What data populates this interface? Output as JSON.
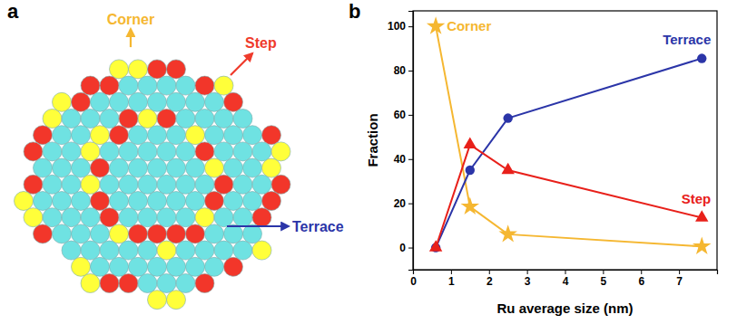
{
  "diagram": {
    "panel_label": "a",
    "labels": [
      {
        "text": "Corner",
        "color": "#f5b731"
      },
      {
        "text": "Step",
        "color": "#ef3b2c"
      },
      {
        "text": "Terrace",
        "color": "#2b35a8"
      }
    ]
  },
  "chart_data": {
    "type": "line",
    "panel_label": "b",
    "x_label": "Ru average size (nm)",
    "y_label": "Fraction",
    "x": [
      0.6,
      1.5,
      2.5,
      7.6
    ],
    "series": [
      {
        "name": "Corner",
        "color": "#f5b731",
        "marker": "star",
        "values": [
          100,
          18.5,
          6,
          0.5
        ]
      },
      {
        "name": "Terrace",
        "color": "#2b35a8",
        "marker": "circle",
        "values": [
          0,
          35,
          58.5,
          85.5
        ]
      },
      {
        "name": "Step",
        "color": "#e8201a",
        "marker": "triangle",
        "values": [
          0,
          46.5,
          35,
          13.5
        ]
      }
    ],
    "xlim": [
      0,
      8
    ],
    "ylim": [
      -10,
      107
    ],
    "xticks": [
      0,
      1,
      2,
      3,
      4,
      5,
      6,
      7
    ],
    "yticks": [
      0,
      20,
      40,
      60,
      80,
      100
    ]
  }
}
